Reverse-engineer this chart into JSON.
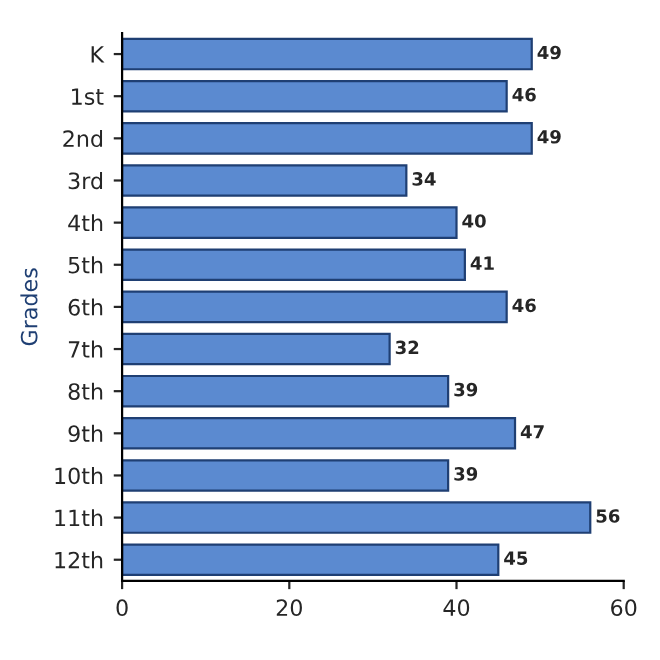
{
  "chart_data": {
    "type": "bar",
    "orientation": "horizontal",
    "ylabel": "Grades",
    "categories": [
      "K",
      "1st",
      "2nd",
      "3rd",
      "4th",
      "5th",
      "6th",
      "7th",
      "8th",
      "9th",
      "10th",
      "11th",
      "12th"
    ],
    "values": [
      49,
      46,
      49,
      34,
      40,
      41,
      46,
      32,
      39,
      47,
      39,
      56,
      45
    ],
    "color": "#5b8ad0",
    "xlim": [
      0,
      60
    ],
    "xticks": [
      0,
      20,
      40,
      60
    ],
    "grid": false,
    "data_labels": true
  }
}
